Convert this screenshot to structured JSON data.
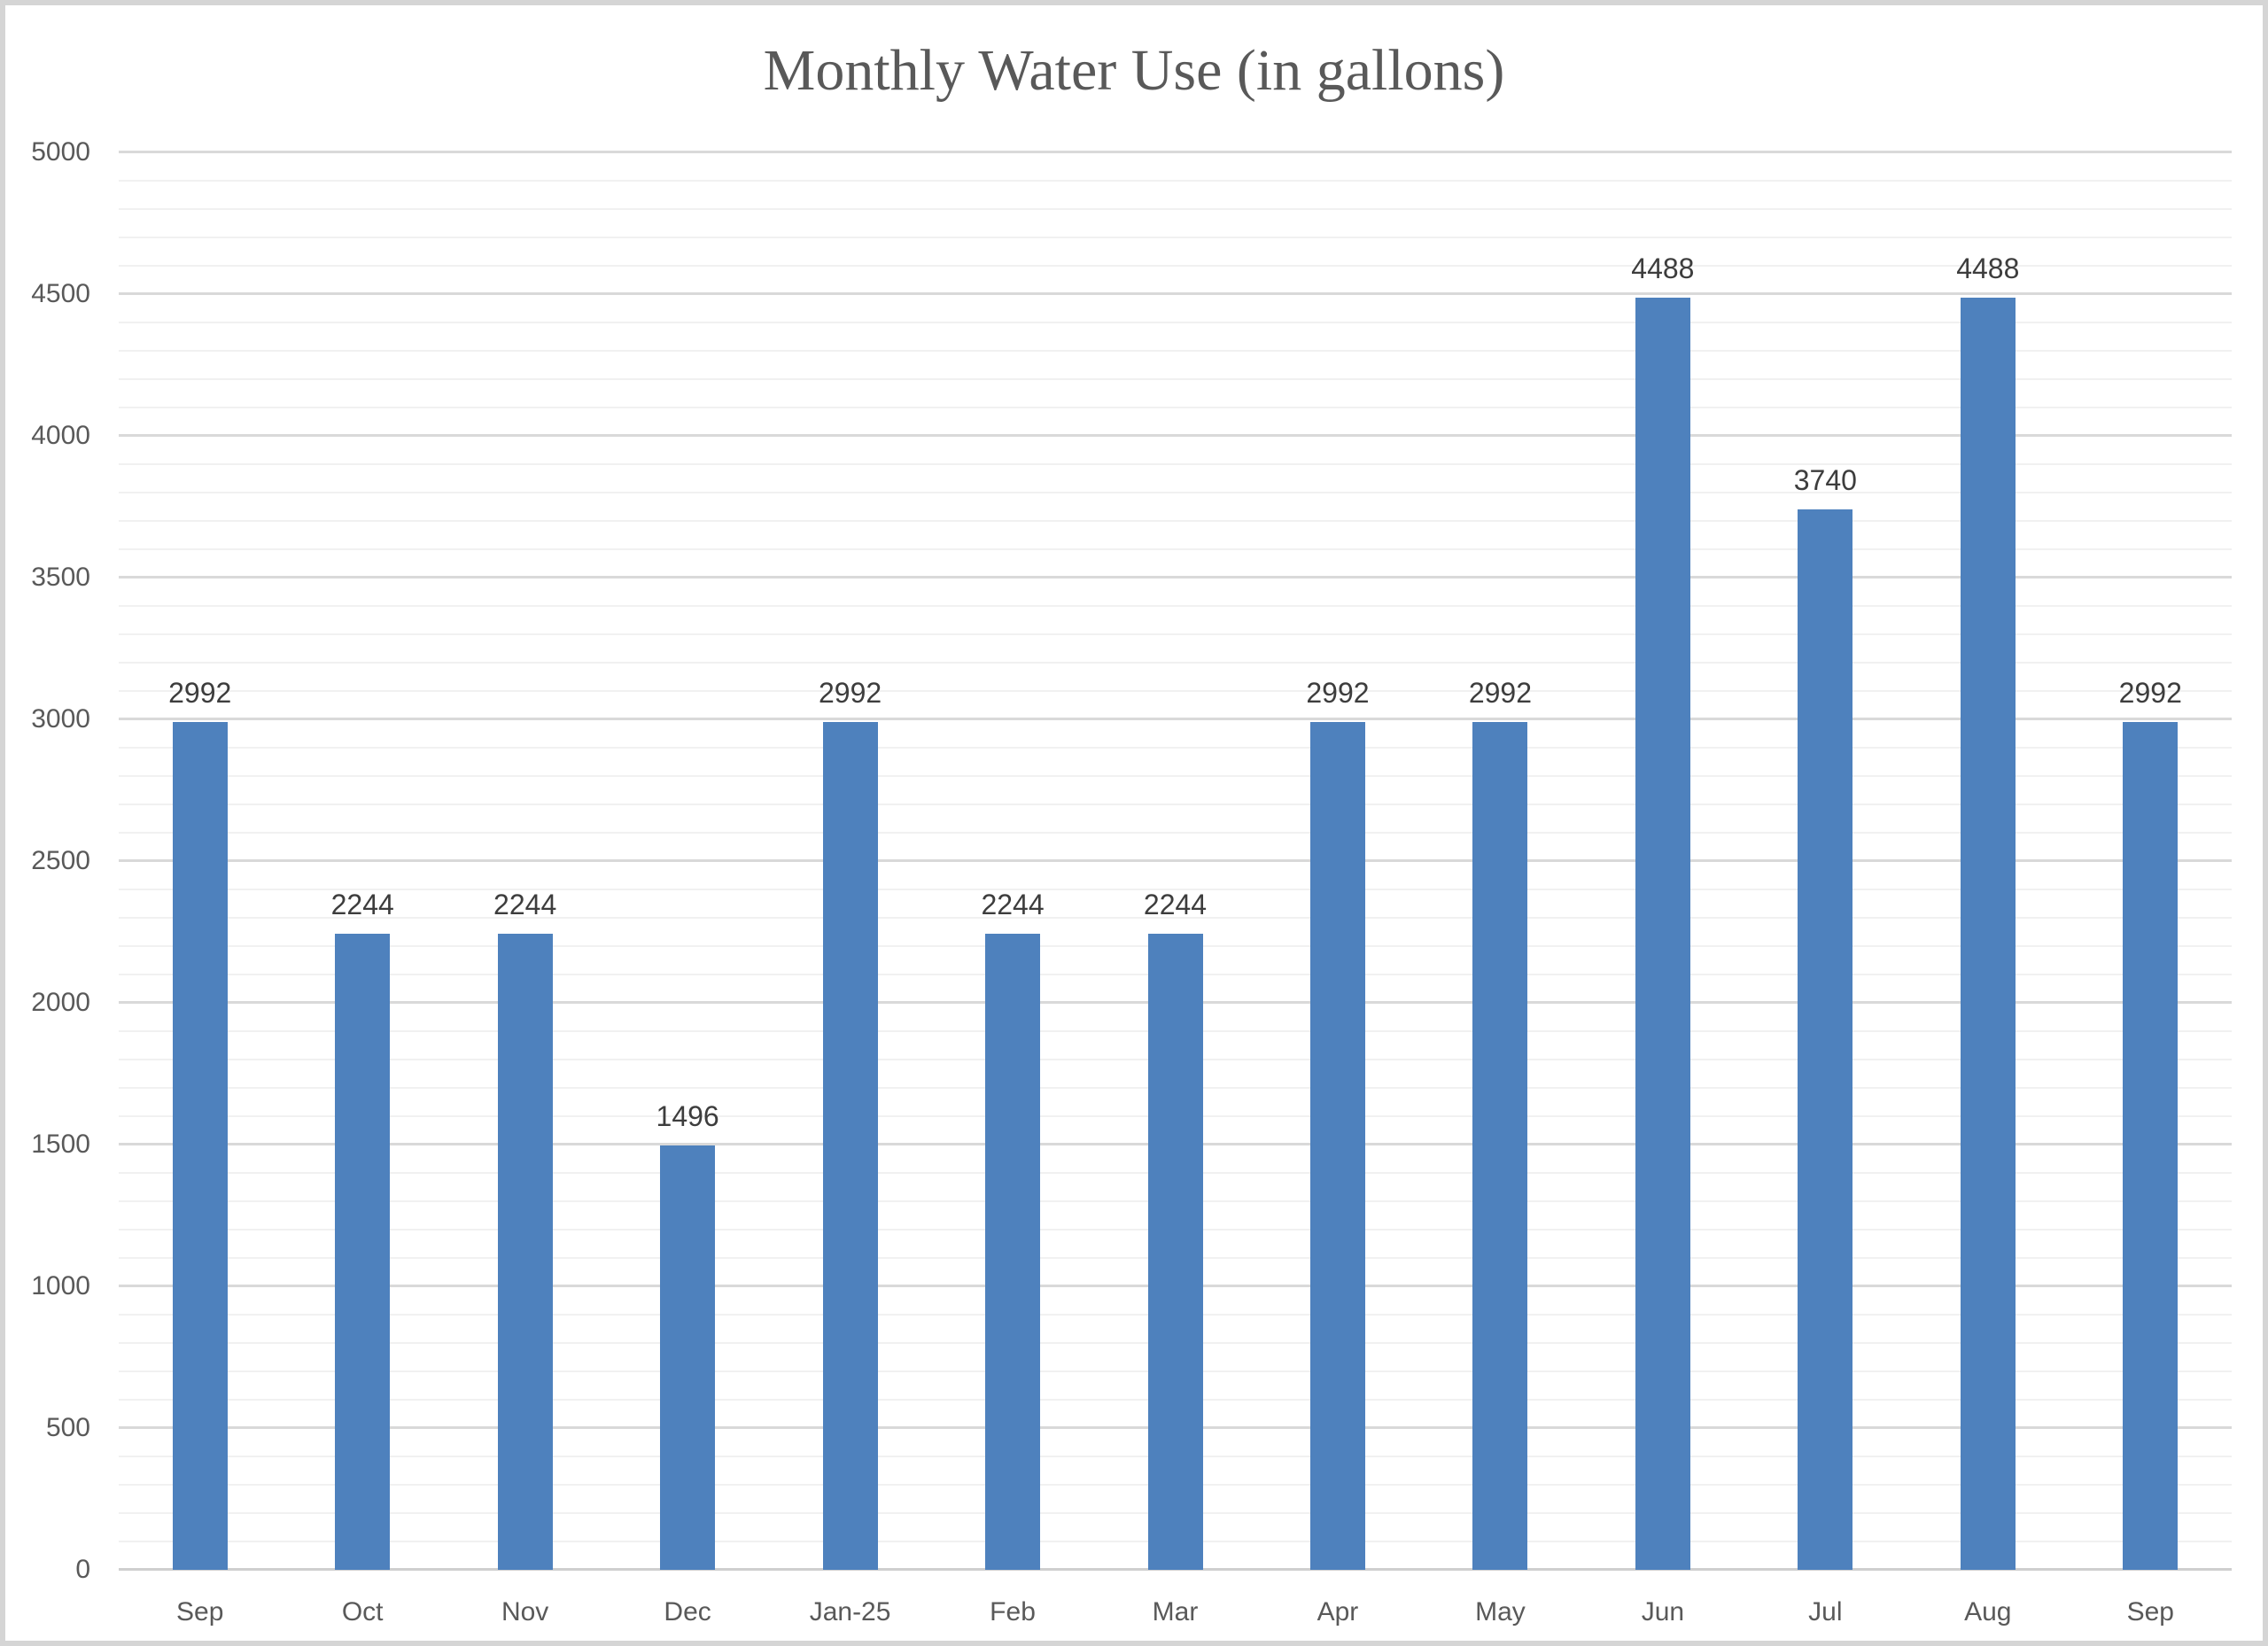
{
  "chart_data": {
    "type": "bar",
    "title": "Monthly Water Use (in gallons)",
    "categories": [
      "Sep",
      "Oct",
      "Nov",
      "Dec",
      "Jan-25",
      "Feb",
      "Mar",
      "Apr",
      "May",
      "Jun",
      "Jul",
      "Aug",
      "Sep"
    ],
    "values": [
      2992,
      2244,
      2244,
      1496,
      2992,
      2244,
      2244,
      2992,
      2992,
      4488,
      3740,
      4488,
      2992
    ],
    "data_labels": [
      "2992",
      "2244",
      "2244",
      "1496",
      "2992",
      "2244",
      "2244",
      "2992",
      "2992",
      "4488",
      "3740",
      "4488",
      "2992"
    ],
    "xlabel": "",
    "ylabel": "",
    "ylim": [
      0,
      5000
    ],
    "y_major_unit": 500,
    "y_minor_unit": 100,
    "y_tick_labels": [
      "0",
      "500",
      "1000",
      "1500",
      "2000",
      "2500",
      "3000",
      "3500",
      "4000",
      "4500",
      "5000"
    ],
    "grid": "major and minor horizontal gridlines",
    "legend": "none",
    "colors": {
      "bar": "#4e81bd",
      "major_gridline": "#d9d9d9",
      "minor_gridline": "#f1f1f1",
      "axis_baseline": "#cfcfcf",
      "title_text": "#595959",
      "tick_text": "#595959",
      "data_label_text": "#3d3d3d",
      "frame_border": "#d5d5d5",
      "background": "#ffffff"
    }
  }
}
